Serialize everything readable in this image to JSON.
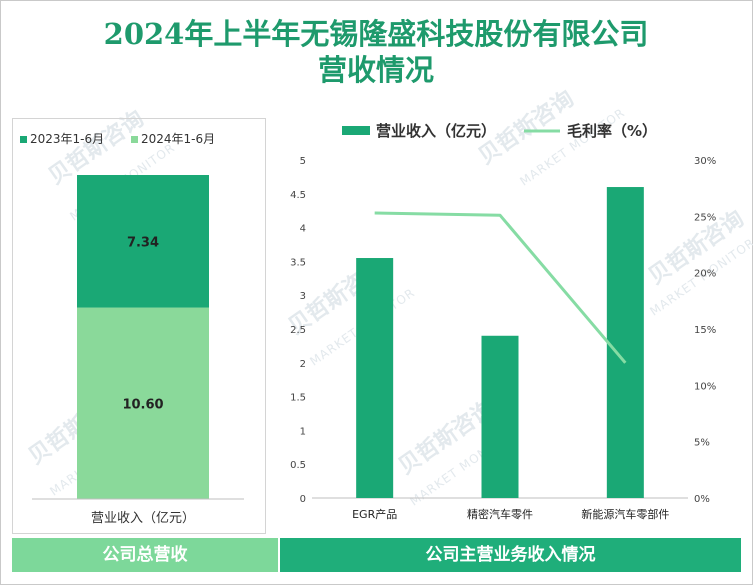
{
  "title": "2024年上半年无锡隆盛科技股份有限公司营收情况",
  "watermark": {
    "cn": "贝哲斯咨询",
    "en": "MARKET MONITOR"
  },
  "footer": {
    "left": "公司总营收",
    "right": "公司主营业务收入情况"
  },
  "colors": {
    "dark_green": "#1aa875",
    "light_green": "#8ad99a",
    "line_green": "#86dca4",
    "title": "#1e9a6c"
  },
  "chart_data": [
    {
      "type": "bar",
      "stacked": true,
      "categories": [
        "营业收入（亿元）"
      ],
      "series": [
        {
          "name": "2024年1-6月",
          "values": [
            10.6
          ],
          "label": "10.60",
          "color": "#8ad99a"
        },
        {
          "name": "2023年1-6月",
          "values": [
            7.34
          ],
          "label": "7.34",
          "color": "#1aa875"
        }
      ],
      "legend_items": [
        "2023年1-6月",
        "2024年1-6月"
      ],
      "legend": "top"
    },
    {
      "type": "bar",
      "categories": [
        "EGR产品",
        "精密汽车零件",
        "新能源汽车零部件"
      ],
      "series": [
        {
          "name": "营业收入（亿元）",
          "type": "bar",
          "axis": "left",
          "values": [
            3.55,
            2.4,
            4.6
          ],
          "color": "#1aa875"
        },
        {
          "name": "毛利率（%）",
          "type": "line",
          "axis": "right",
          "values": [
            25.3,
            25.1,
            12.0
          ],
          "color": "#86dca4"
        }
      ],
      "y_left": {
        "ylim": [
          0,
          5
        ],
        "ticks": [
          "0",
          "0.5",
          "1",
          "1.5",
          "2",
          "2.5",
          "3",
          "3.5",
          "4",
          "4.5",
          "5"
        ]
      },
      "y_right": {
        "ylim": [
          0,
          30
        ],
        "ticks": [
          "0%",
          "5%",
          "10%",
          "15%",
          "20%",
          "25%",
          "30%"
        ]
      },
      "legend": "top"
    }
  ]
}
